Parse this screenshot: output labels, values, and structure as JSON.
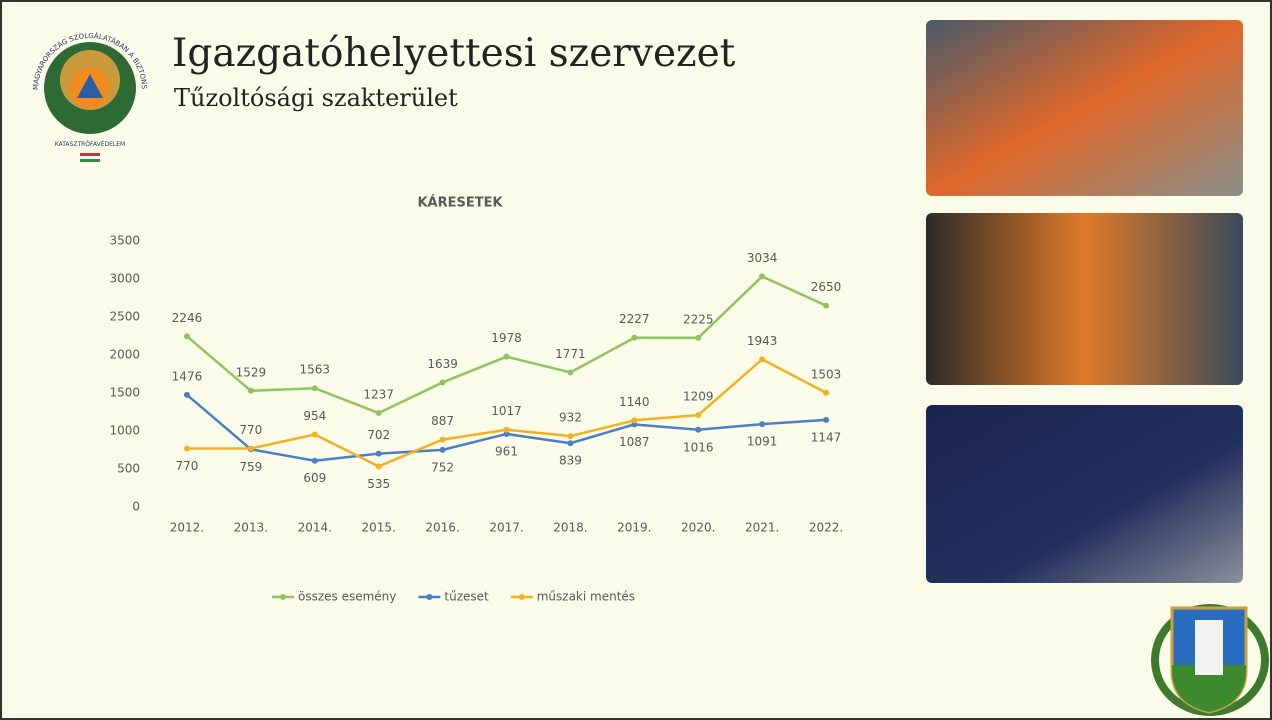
{
  "header": {
    "title": "Igazgatóhelyettesi szervezet",
    "subtitle": "Tűzoltósági szakterület"
  },
  "logo": {
    "motto": "MAGYARORSZÁG SZOLGÁLATÁBAN A BIZTONSÁGÉRT",
    "name": "KATASZTRÓFAVÉDELEM"
  },
  "chart_data": {
    "type": "line",
    "title": "KÁRESETEK",
    "categories": [
      "2012.",
      "2013.",
      "2014.",
      "2015.",
      "2016.",
      "2017.",
      "2018.",
      "2019.",
      "2020.",
      "2021.",
      "2022."
    ],
    "series": [
      {
        "name": "összes esemény",
        "color": "#8fc45e",
        "values": [
          2246,
          1529,
          1563,
          1237,
          1639,
          1978,
          1771,
          2227,
          2225,
          3034,
          2650
        ]
      },
      {
        "name": "tűzeset",
        "color": "#4a7fc4",
        "values": [
          1476,
          759,
          609,
          702,
          752,
          961,
          839,
          1087,
          1016,
          1091,
          1147
        ]
      },
      {
        "name": "műszaki mentés",
        "color": "#f3b122",
        "values": [
          770,
          770,
          954,
          535,
          887,
          1017,
          932,
          1140,
          1209,
          1943,
          1503
        ]
      }
    ],
    "ylim": [
      0,
      3500
    ],
    "yticks": [
      0,
      500,
      1000,
      1500,
      2000,
      2500,
      3000,
      3500
    ],
    "grid": false,
    "legend": "bottom"
  }
}
